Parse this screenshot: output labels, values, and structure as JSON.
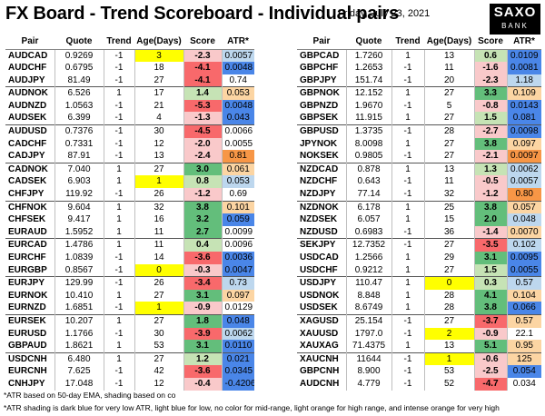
{
  "header": {
    "title": "FX Board - Trend Scoreboard - Individual pairs",
    "date": "Friday, July 23, 2021",
    "logo_top": "SAXO",
    "logo_bottom": "BANK"
  },
  "columns": [
    "Pair",
    "Quote",
    "Trend",
    "Age(Days)",
    "Score",
    "ATR*"
  ],
  "colors": {
    "score_strong_pos": "#63be7b",
    "score_mild_pos": "#c6e3b5",
    "score_strong_neg": "#f8696b",
    "score_mild_neg": "#f9c9ca",
    "age_low": "#ffff00",
    "atr_dark_blue": "#4a86e8",
    "atr_light_blue": "#bdd7ee",
    "atr_light_orange": "#fcd5a3",
    "atr_intense_orange": "#f79646"
  },
  "left_table": [
    {
      "pair": "AUDCAD",
      "quote": "0.9269",
      "trend": "-1",
      "age": "3",
      "score": "-2.3",
      "atr": "0.0057",
      "sc": "mn",
      "ac": "lb",
      "ag": "y",
      "g": 1
    },
    {
      "pair": "AUDCHF",
      "quote": "0.6795",
      "trend": "-1",
      "age": "18",
      "score": "-4.1",
      "atr": "0.0048",
      "sc": "sn",
      "ac": "db",
      "ag": "",
      "g": 0
    },
    {
      "pair": "AUDJPY",
      "quote": "81.49",
      "trend": "-1",
      "age": "27",
      "score": "-4.1",
      "atr": "0.74",
      "sc": "sn",
      "ac": "",
      "ag": "",
      "g": 0
    },
    {
      "pair": "AUDNOK",
      "quote": "6.526",
      "trend": "1",
      "age": "17",
      "score": "1.4",
      "atr": "0.053",
      "sc": "mp",
      "ac": "lo",
      "ag": "",
      "g": 1
    },
    {
      "pair": "AUDNZD",
      "quote": "1.0563",
      "trend": "-1",
      "age": "21",
      "score": "-5.3",
      "atr": "0.0048",
      "sc": "sn",
      "ac": "db",
      "ag": "",
      "g": 0
    },
    {
      "pair": "AUDSEK",
      "quote": "6.399",
      "trend": "-1",
      "age": "4",
      "score": "-1.3",
      "atr": "0.043",
      "sc": "mn",
      "ac": "db",
      "ag": "",
      "g": 0
    },
    {
      "pair": "AUDUSD",
      "quote": "0.7376",
      "trend": "-1",
      "age": "30",
      "score": "-4.5",
      "atr": "0.0066",
      "sc": "sn",
      "ac": "",
      "ag": "",
      "g": 1
    },
    {
      "pair": "CADCHF",
      "quote": "0.7331",
      "trend": "-1",
      "age": "12",
      "score": "-2.0",
      "atr": "0.0055",
      "sc": "mn",
      "ac": "",
      "ag": "",
      "g": 0
    },
    {
      "pair": "CADJPY",
      "quote": "87.91",
      "trend": "-1",
      "age": "13",
      "score": "-2.4",
      "atr": "0.81",
      "sc": "mn",
      "ac": "io",
      "ag": "",
      "g": 0
    },
    {
      "pair": "CADNOK",
      "quote": "7.040",
      "trend": "1",
      "age": "27",
      "score": "3.0",
      "atr": "0.061",
      "sc": "sp",
      "ac": "lo",
      "ag": "",
      "g": 1
    },
    {
      "pair": "CADSEK",
      "quote": "6.903",
      "trend": "1",
      "age": "1",
      "score": "0.8",
      "atr": "0.053",
      "sc": "mp",
      "ac": "lb",
      "ag": "y",
      "g": 0
    },
    {
      "pair": "CHFJPY",
      "quote": "119.92",
      "trend": "-1",
      "age": "26",
      "score": "-1.2",
      "atr": "0.69",
      "sc": "mn",
      "ac": "",
      "ag": "",
      "g": 0
    },
    {
      "pair": "CHFNOK",
      "quote": "9.604",
      "trend": "1",
      "age": "32",
      "score": "3.8",
      "atr": "0.101",
      "sc": "sp",
      "ac": "lo",
      "ag": "",
      "g": 1
    },
    {
      "pair": "CHFSEK",
      "quote": "9.417",
      "trend": "1",
      "age": "16",
      "score": "3.2",
      "atr": "0.059",
      "sc": "sp",
      "ac": "db",
      "ag": "",
      "g": 0
    },
    {
      "pair": "EURAUD",
      "quote": "1.5952",
      "trend": "1",
      "age": "11",
      "score": "2.7",
      "atr": "0.0099",
      "sc": "sp",
      "ac": "",
      "ag": "",
      "g": 0
    },
    {
      "pair": "EURCAD",
      "quote": "1.4786",
      "trend": "1",
      "age": "11",
      "score": "0.4",
      "atr": "0.0096",
      "sc": "mp",
      "ac": "",
      "ag": "",
      "g": 1
    },
    {
      "pair": "EURCHF",
      "quote": "1.0839",
      "trend": "-1",
      "age": "14",
      "score": "-3.6",
      "atr": "0.0036",
      "sc": "sn",
      "ac": "db",
      "ag": "",
      "g": 0
    },
    {
      "pair": "EURGBP",
      "quote": "0.8567",
      "trend": "-1",
      "age": "0",
      "score": "-0.3",
      "atr": "0.0047",
      "sc": "mn",
      "ac": "db",
      "ag": "y",
      "g": 0
    },
    {
      "pair": "EURJPY",
      "quote": "129.99",
      "trend": "-1",
      "age": "26",
      "score": "-3.4",
      "atr": "0.73",
      "sc": "sn",
      "ac": "lb",
      "ag": "",
      "g": 1
    },
    {
      "pair": "EURNOK",
      "quote": "10.410",
      "trend": "1",
      "age": "27",
      "score": "3.1",
      "atr": "0.097",
      "sc": "sp",
      "ac": "lo",
      "ag": "",
      "g": 0
    },
    {
      "pair": "EURNZD",
      "quote": "1.6851",
      "trend": "-1",
      "age": "1",
      "score": "-0.9",
      "atr": "0.0129",
      "sc": "mn",
      "ac": "",
      "ag": "y",
      "g": 0
    },
    {
      "pair": "EURSEK",
      "quote": "10.207",
      "trend": "1",
      "age": "27",
      "score": "1.8",
      "atr": "0.048",
      "sc": "sp",
      "ac": "db",
      "ag": "",
      "g": 1
    },
    {
      "pair": "EURUSD",
      "quote": "1.1766",
      "trend": "-1",
      "age": "30",
      "score": "-3.9",
      "atr": "0.0062",
      "sc": "sn",
      "ac": "lb",
      "ag": "",
      "g": 0
    },
    {
      "pair": "GBPAUD",
      "quote": "1.8621",
      "trend": "1",
      "age": "53",
      "score": "3.1",
      "atr": "0.0110",
      "sc": "sp",
      "ac": "db",
      "ag": "",
      "g": 0
    },
    {
      "pair": "USDCNH",
      "quote": "6.480",
      "trend": "1",
      "age": "27",
      "score": "1.2",
      "atr": "0.021",
      "sc": "mp",
      "ac": "db",
      "ag": "",
      "g": 1
    },
    {
      "pair": "EURCNH",
      "quote": "7.625",
      "trend": "-1",
      "age": "42",
      "score": "-3.6",
      "atr": "0.0345",
      "sc": "sn",
      "ac": "db",
      "ag": "",
      "g": 0
    },
    {
      "pair": "CNHJPY",
      "quote": "17.048",
      "trend": "-1",
      "age": "12",
      "score": "-0.4",
      "atr": "-0.4206",
      "sc": "mn",
      "ac": "db",
      "ag": "",
      "g": 0
    }
  ],
  "right_table": [
    {
      "pair": "GBPCAD",
      "quote": "1.7260",
      "trend": "1",
      "age": "13",
      "score": "0.6",
      "atr": "0.0109",
      "sc": "mp",
      "ac": "db",
      "ag": "",
      "g": 1
    },
    {
      "pair": "GBPCHF",
      "quote": "1.2653",
      "trend": "-1",
      "age": "11",
      "score": "-1.6",
      "atr": "0.0081",
      "sc": "mn",
      "ac": "db",
      "ag": "",
      "g": 0
    },
    {
      "pair": "GBPJPY",
      "quote": "151.74",
      "trend": "-1",
      "age": "20",
      "score": "-2.3",
      "atr": "1.18",
      "sc": "mn",
      "ac": "lb",
      "ag": "",
      "g": 0
    },
    {
      "pair": "GBPNOK",
      "quote": "12.152",
      "trend": "1",
      "age": "27",
      "score": "3.3",
      "atr": "0.109",
      "sc": "sp",
      "ac": "lo",
      "ag": "",
      "g": 1
    },
    {
      "pair": "GBPNZD",
      "quote": "1.9670",
      "trend": "-1",
      "age": "5",
      "score": "-0.8",
      "atr": "0.0143",
      "sc": "mn",
      "ac": "db",
      "ag": "",
      "g": 0
    },
    {
      "pair": "GBPSEK",
      "quote": "11.915",
      "trend": "1",
      "age": "27",
      "score": "1.5",
      "atr": "0.081",
      "sc": "mp",
      "ac": "db",
      "ag": "",
      "g": 0
    },
    {
      "pair": "GBPUSD",
      "quote": "1.3735",
      "trend": "-1",
      "age": "28",
      "score": "-2.7",
      "atr": "0.0098",
      "sc": "mn",
      "ac": "db",
      "ag": "",
      "g": 1
    },
    {
      "pair": "JPYNOK",
      "quote": "8.0098",
      "trend": "1",
      "age": "27",
      "score": "3.8",
      "atr": "0.097",
      "sc": "sp",
      "ac": "lo",
      "ag": "",
      "g": 0
    },
    {
      "pair": "NOKSEK",
      "quote": "0.9805",
      "trend": "-1",
      "age": "27",
      "score": "-2.1",
      "atr": "0.0097",
      "sc": "mn",
      "ac": "io",
      "ag": "",
      "g": 0
    },
    {
      "pair": "NZDCAD",
      "quote": "0.878",
      "trend": "1",
      "age": "13",
      "score": "1.3",
      "atr": "0.0062",
      "sc": "mp",
      "ac": "lb",
      "ag": "",
      "g": 1
    },
    {
      "pair": "NZDCHF",
      "quote": "0.643",
      "trend": "-1",
      "age": "11",
      "score": "-0.5",
      "atr": "0.0057",
      "sc": "mn",
      "ac": "lb",
      "ag": "",
      "g": 0
    },
    {
      "pair": "NZDJPY",
      "quote": "77.14",
      "trend": "-1",
      "age": "32",
      "score": "-1.2",
      "atr": "0.80",
      "sc": "mn",
      "ac": "io",
      "ag": "",
      "g": 0
    },
    {
      "pair": "NZDNOK",
      "quote": "6.178",
      "trend": "1",
      "age": "25",
      "score": "3.8",
      "atr": "0.057",
      "sc": "sp",
      "ac": "lo",
      "ag": "",
      "g": 1
    },
    {
      "pair": "NZDSEK",
      "quote": "6.057",
      "trend": "1",
      "age": "15",
      "score": "2.0",
      "atr": "0.048",
      "sc": "sp",
      "ac": "lb",
      "ag": "",
      "g": 0
    },
    {
      "pair": "NZDUSD",
      "quote": "0.6983",
      "trend": "-1",
      "age": "36",
      "score": "-1.4",
      "atr": "0.0070",
      "sc": "mn",
      "ac": "lo",
      "ag": "",
      "g": 0
    },
    {
      "pair": "SEKJPY",
      "quote": "12.7352",
      "trend": "-1",
      "age": "27",
      "score": "-3.5",
      "atr": "0.102",
      "sc": "sn",
      "ac": "lb",
      "ag": "",
      "g": 1
    },
    {
      "pair": "USDCAD",
      "quote": "1.2566",
      "trend": "1",
      "age": "29",
      "score": "3.1",
      "atr": "0.0095",
      "sc": "sp",
      "ac": "db",
      "ag": "",
      "g": 0
    },
    {
      "pair": "USDCHF",
      "quote": "0.9212",
      "trend": "1",
      "age": "27",
      "score": "1.5",
      "atr": "0.0055",
      "sc": "mp",
      "ac": "db",
      "ag": "",
      "g": 0
    },
    {
      "pair": "USDJPY",
      "quote": "110.47",
      "trend": "1",
      "age": "0",
      "score": "0.3",
      "atr": "0.57",
      "sc": "mp",
      "ac": "lb",
      "ag": "y",
      "g": 1
    },
    {
      "pair": "USDNOK",
      "quote": "8.848",
      "trend": "1",
      "age": "28",
      "score": "4.1",
      "atr": "0.104",
      "sc": "sp",
      "ac": "lo",
      "ag": "",
      "g": 0
    },
    {
      "pair": "USDSEK",
      "quote": "8.6749",
      "trend": "1",
      "age": "28",
      "score": "3.8",
      "atr": "0.066",
      "sc": "sp",
      "ac": "db",
      "ag": "",
      "g": 0
    },
    {
      "pair": "XAGUSD",
      "quote": "25.154",
      "trend": "-1",
      "age": "27",
      "score": "-3.7",
      "atr": "0.57",
      "sc": "sn",
      "ac": "lo",
      "ag": "",
      "g": 1
    },
    {
      "pair": "XAUUSD",
      "quote": "1797.0",
      "trend": "-1",
      "age": "2",
      "score": "-0.9",
      "atr": "22.1",
      "sc": "mn",
      "ac": "",
      "ag": "y",
      "g": 0
    },
    {
      "pair": "XAUXAG",
      "quote": "71.4375",
      "trend": "1",
      "age": "13",
      "score": "5.1",
      "atr": "0.95",
      "sc": "sp",
      "ac": "lo",
      "ag": "",
      "g": 0
    },
    {
      "pair": "XAUCNH",
      "quote": "11644",
      "trend": "-1",
      "age": "1",
      "score": "-0.6",
      "atr": "125",
      "sc": "mn",
      "ac": "lo",
      "ag": "y",
      "g": 1
    },
    {
      "pair": "GBPCNH",
      "quote": "8.900",
      "trend": "-1",
      "age": "53",
      "score": "-2.5",
      "atr": "0.054",
      "sc": "mn",
      "ac": "db",
      "ag": "",
      "g": 0
    },
    {
      "pair": "AUDCNH",
      "quote": "4.779",
      "trend": "-1",
      "age": "52",
      "score": "-4.7",
      "atr": "0.034",
      "sc": "sn",
      "ac": "",
      "ag": "",
      "g": 0
    }
  ],
  "footnotes": {
    "note1": "*ATR based on 50-day EMA, shading based on co",
    "note2": "*ATR shading is dark blue for very low ATR, light blue for low, no color for mid-range, light orange for high range, and intense orange for very high"
  }
}
